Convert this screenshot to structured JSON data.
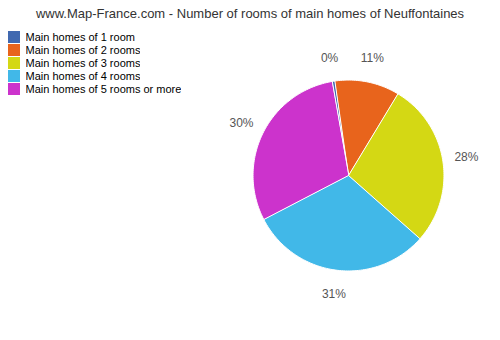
{
  "chart_data": {
    "type": "pie",
    "title": "www.Map-France.com - Number of rooms of main homes of Neuffontaines",
    "categories": [
      "Main homes of 1 room",
      "Main homes of 2 rooms",
      "Main homes of 3 rooms",
      "Main homes of 4 rooms",
      "Main homes of 5 rooms or more"
    ],
    "values": [
      0.5,
      11,
      28,
      31,
      30
    ],
    "value_labels": [
      "0%",
      "11%",
      "28%",
      "31%",
      "30%"
    ],
    "colors": [
      "#4169b0",
      "#e8641c",
      "#d4d814",
      "#41b8e8",
      "#cc33cc"
    ],
    "data_labels": true,
    "legend": "upper left"
  }
}
